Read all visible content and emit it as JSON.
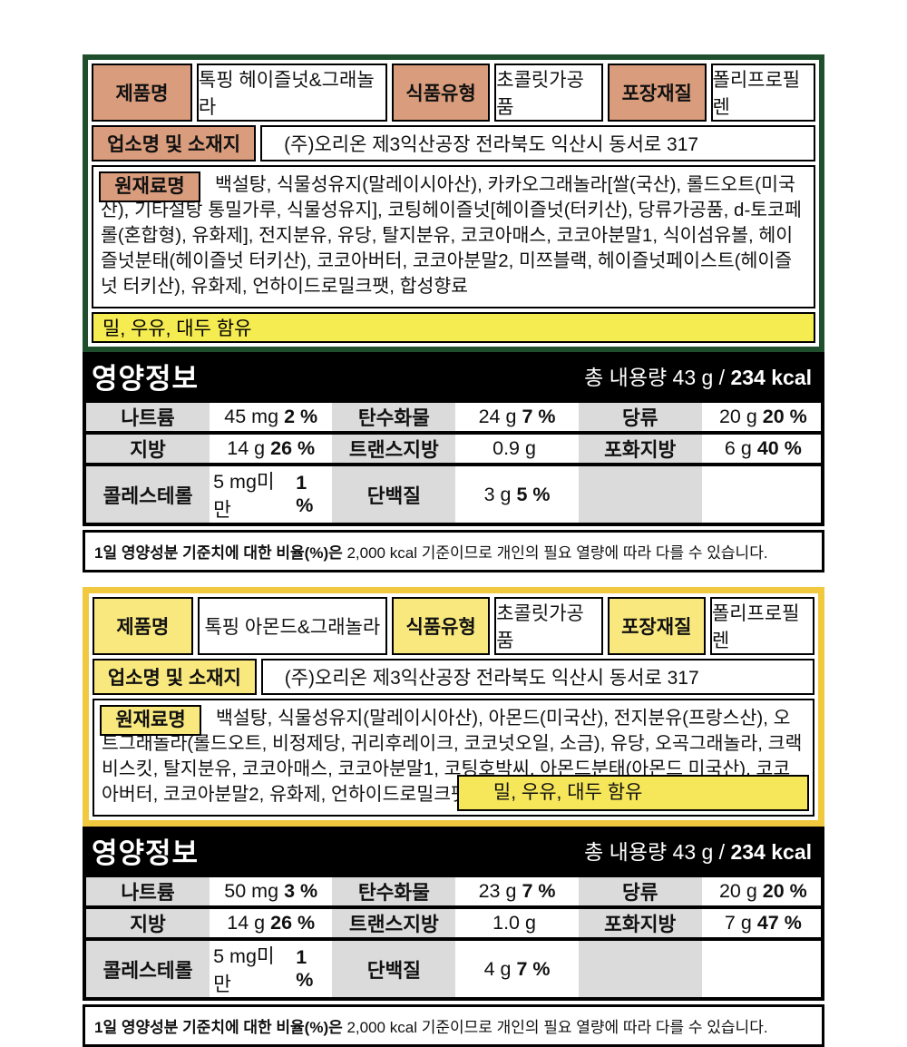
{
  "products": [
    {
      "theme": {
        "border_color": "#1F4F2D",
        "label_bg": "#D99C7C",
        "allergen_bg": "#F5EC51"
      },
      "info": {
        "product_name_label": "제품명",
        "product_name": "톡핑 헤이즐넛&그래놀라",
        "food_type_label": "식품유형",
        "food_type": "초콜릿가공품",
        "packaging_label": "포장재질",
        "packaging": "폴리프로필렌",
        "business_label": "업소명 및 소재지",
        "business": "(주)오리온 제3익산공장 전라북도 익산시 동서로 317",
        "ingredients_label": "원재료명",
        "ingredients": "백설탕, 식물성유지(말레이시아산), 카카오그래놀라[쌀(국산), 롤드오트(미국산), 기타설탕 통밀가루, 식물성유지], 코팅헤이즐넛[헤이즐넛(터키산), 당류가공품, d-토코페롤(혼합형), 유화제], 전지분유, 유당, 탈지분유, 코코아매스, 코코아분말1, 식이섬유볼, 헤이즐넛분태(헤이즐넛 터키산), 코코아버터, 코코아분말2, 미쯔블랙, 헤이즐넛페이스트(헤이즐넛 터키산), 유화제, 언하이드로밀크팻, 합성향료",
        "allergen": "밀, 우유, 대두 함유"
      },
      "nutrition": {
        "title": "영양정보",
        "serving_prefix": "총 내용량 43 g /",
        "serving_kcal": "234 kcal",
        "rows": [
          [
            {
              "label": "나트륨",
              "amount": "45 mg",
              "percent": "2 %"
            },
            {
              "label": "탄수화물",
              "amount": "24 g",
              "percent": "7 %"
            },
            {
              "label": "당류",
              "amount": "20 g",
              "percent": "20 %"
            }
          ],
          [
            {
              "label": "지방",
              "amount": "14 g",
              "percent": "26 %"
            },
            {
              "label": "트랜스지방",
              "amount": "0.9 g",
              "percent": ""
            },
            {
              "label": "포화지방",
              "amount": "6 g",
              "percent": "40 %"
            }
          ],
          [
            {
              "label": "콜레스테롤",
              "amount": "5 mg미만",
              "percent": "1 %"
            },
            {
              "label": "단백질",
              "amount": "3 g",
              "percent": "5 %"
            },
            {
              "label": "",
              "amount": "",
              "percent": ""
            }
          ]
        ],
        "disclaimer_bold": "1일 영양성분 기준치에 대한 비율(%)은",
        "disclaimer_rest": " 2,000 kcal 기준이므로 개인의 필요 열량에 따라 다를 수 있습니다."
      }
    },
    {
      "theme": {
        "border_color": "#F0C93F",
        "label_bg": "#F9E87D",
        "allergen_bg": "#F5E65A"
      },
      "info": {
        "product_name_label": "제품명",
        "product_name": "톡핑 아몬드&그래놀라",
        "food_type_label": "식품유형",
        "food_type": "초콜릿가공품",
        "packaging_label": "포장재질",
        "packaging": "폴리프로필렌",
        "business_label": "업소명 및 소재지",
        "business": "(주)오리온 제3익산공장 전라북도 익산시 동서로 317",
        "ingredients_label": "원재료명",
        "ingredients": "백설탕, 식물성유지(말레이시아산), 아몬드(미국산), 전지분유(프랑스산), 오트그래놀라(롤드오트, 비정제당, 귀리후레이크, 코코넛오일, 소금), 유당, 오곡그래놀라, 크랙비스킷, 탈지분유, 코코아매스, 코코아분말1, 코팅호박씨, 아몬드분태(아몬드 미국산), 코코아버터, 코코아분말2, 유화제, 언하이드로밀크펫, 합성향료",
        "allergen": "밀, 우유, 대두 함유"
      },
      "nutrition": {
        "title": "영양정보",
        "serving_prefix": "총 내용량 43 g /",
        "serving_kcal": "234 kcal",
        "rows": [
          [
            {
              "label": "나트륨",
              "amount": "50 mg",
              "percent": "3 %"
            },
            {
              "label": "탄수화물",
              "amount": "23 g",
              "percent": "7 %"
            },
            {
              "label": "당류",
              "amount": "20 g",
              "percent": "20 %"
            }
          ],
          [
            {
              "label": "지방",
              "amount": "14 g",
              "percent": "26 %"
            },
            {
              "label": "트랜스지방",
              "amount": "1.0 g",
              "percent": ""
            },
            {
              "label": "포화지방",
              "amount": "7 g",
              "percent": "47 %"
            }
          ],
          [
            {
              "label": "콜레스테롤",
              "amount": "5 mg미만",
              "percent": "1 %"
            },
            {
              "label": "단백질",
              "amount": "4 g",
              "percent": "7 %"
            },
            {
              "label": "",
              "amount": "",
              "percent": ""
            }
          ]
        ],
        "disclaimer_bold": "1일 영양성분 기준치에 대한 비율(%)은",
        "disclaimer_rest": " 2,000 kcal 기준이므로 개인의 필요 열량에 따라 다를 수 있습니다."
      }
    }
  ]
}
